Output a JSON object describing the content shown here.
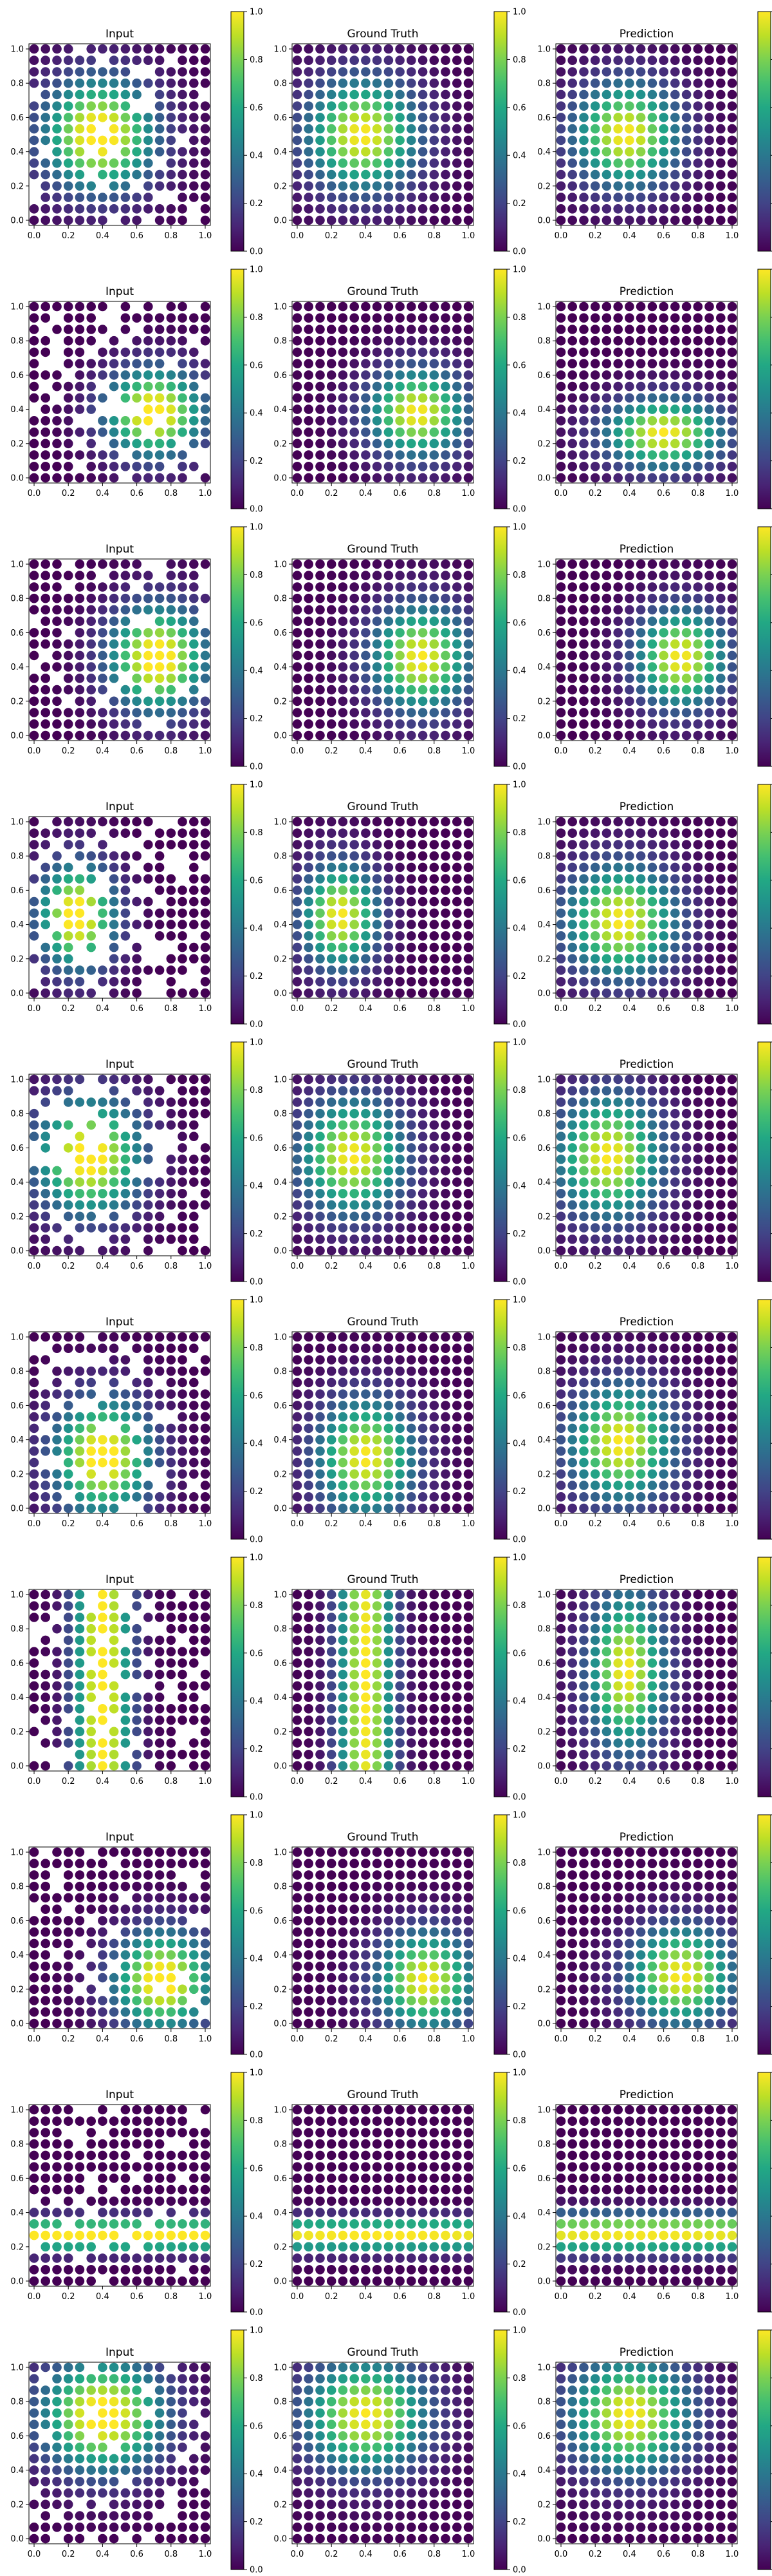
{
  "figure": {
    "rows": 10,
    "cols": 3,
    "panel_titles": [
      "Input",
      "Ground Truth",
      "Prediction"
    ],
    "colormap": "viridis"
  },
  "chart_data": {
    "type": "scatter",
    "description_of_grid": "Each subplot shows a 16x16 grid of points on [0,1]x[0,1] colored by value in [0,1]; values visualized via viridis colormap. Input panels have some points missing (masked).",
    "xlim": [
      0,
      1
    ],
    "ylim": [
      0,
      1
    ],
    "xticks": [
      "0.0",
      "0.2",
      "0.4",
      "0.6",
      "0.8",
      "1.0"
    ],
    "yticks": [
      "0.0",
      "0.2",
      "0.4",
      "0.6",
      "0.8",
      "1.0"
    ],
    "colorbar_ticks": [
      "0.0",
      "0.2",
      "0.4",
      "0.6",
      "0.8",
      "1.0"
    ],
    "colorbar_range": [
      0,
      1
    ],
    "grid_points_per_axis": 16,
    "rows": [
      {
        "gt": {
          "cx": 0.38,
          "cy": 0.5,
          "sx": 0.32,
          "sy": 0.32
        },
        "pred": {
          "cx": 0.38,
          "cy": 0.5,
          "sx": 0.3,
          "sy": 0.3
        },
        "mask_fraction": 0.12
      },
      {
        "gt": {
          "cx": 0.7,
          "cy": 0.38,
          "sx": 0.28,
          "sy": 0.25
        },
        "pred": {
          "cx": 0.6,
          "cy": 0.26,
          "sx": 0.34,
          "sy": 0.2
        },
        "mask_fraction": 0.15
      },
      {
        "gt": {
          "cx": 0.72,
          "cy": 0.45,
          "sx": 0.28,
          "sy": 0.3
        },
        "pred": {
          "cx": 0.7,
          "cy": 0.45,
          "sx": 0.26,
          "sy": 0.28
        },
        "mask_fraction": 0.12
      },
      {
        "gt": {
          "cx": 0.25,
          "cy": 0.45,
          "sx": 0.22,
          "sy": 0.3
        },
        "pred": {
          "cx": 0.35,
          "cy": 0.42,
          "sx": 0.32,
          "sy": 0.32
        },
        "mask_fraction": 0.18
      },
      {
        "gt": {
          "cx": 0.32,
          "cy": 0.55,
          "sx": 0.3,
          "sy": 0.33
        },
        "pred": {
          "cx": 0.28,
          "cy": 0.55,
          "sx": 0.3,
          "sy": 0.35
        },
        "mask_fraction": 0.2
      },
      {
        "gt": {
          "cx": 0.4,
          "cy": 0.3,
          "sx": 0.28,
          "sy": 0.33
        },
        "pred": {
          "cx": 0.35,
          "cy": 0.38,
          "sx": 0.3,
          "sy": 0.33
        },
        "mask_fraction": 0.15
      },
      {
        "gt": {
          "cx": 0.4,
          "cy": 0.5,
          "sx": 0.16,
          "sy": 2.5
        },
        "pred": {
          "cx": 0.38,
          "cy": 0.55,
          "sx": 0.22,
          "sy": 0.45
        },
        "mask_fraction": 0.18
      },
      {
        "gt": {
          "cx": 0.75,
          "cy": 0.25,
          "sx": 0.28,
          "sy": 0.28
        },
        "pred": {
          "cx": 0.7,
          "cy": 0.28,
          "sx": 0.3,
          "sy": 0.28
        },
        "mask_fraction": 0.1
      },
      {
        "gt": {
          "cx": 0.5,
          "cy": 0.27,
          "sx": 3.0,
          "sy": 0.09
        },
        "pred": {
          "cx": 0.5,
          "cy": 0.28,
          "sx": 3.0,
          "sy": 0.11
        },
        "mask_fraction": 0.15
      },
      {
        "gt": {
          "cx": 0.4,
          "cy": 0.72,
          "sx": 0.35,
          "sy": 0.32
        },
        "pred": {
          "cx": 0.4,
          "cy": 0.72,
          "sx": 0.35,
          "sy": 0.33
        },
        "mask_fraction": 0.12
      }
    ]
  }
}
